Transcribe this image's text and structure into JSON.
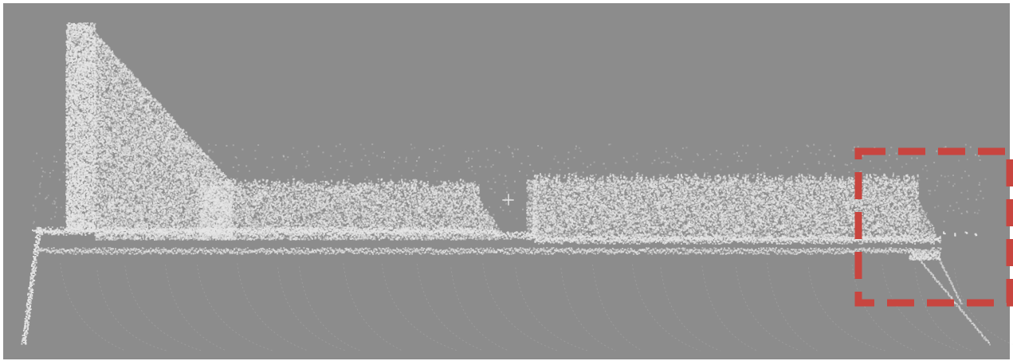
{
  "image": {
    "background_color": "#8c8c8c",
    "point_color": "#e6e6e6",
    "highlight_box_color": "#c8453f",
    "highlight_box_style": "dashed"
  }
}
